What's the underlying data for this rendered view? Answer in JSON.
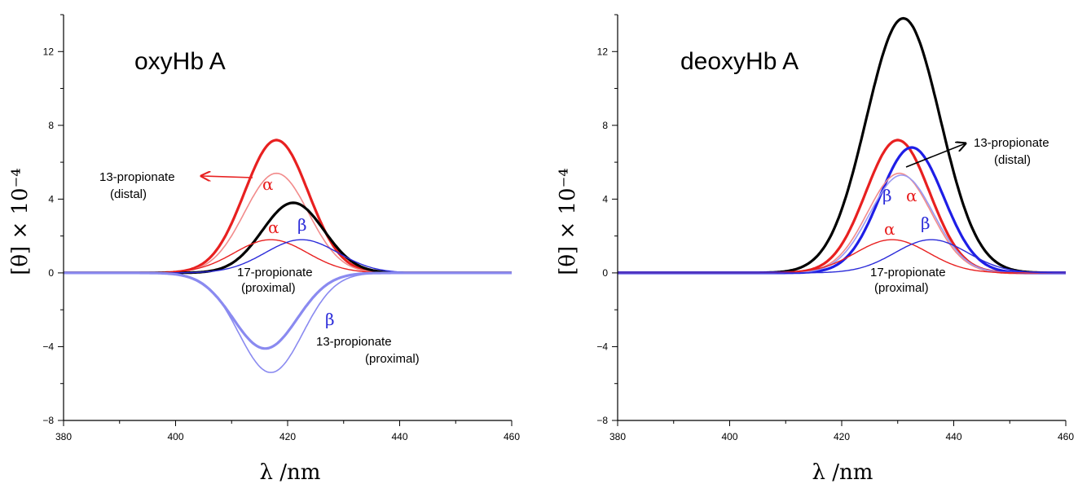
{
  "chart_data": [
    {
      "type": "line",
      "title": "oxyHb A",
      "xlabel": "λ /nm",
      "ylabel": "[θ] × 10⁻⁴",
      "xlim": [
        380,
        460
      ],
      "ylim": [
        -8,
        14
      ],
      "xticks": [
        "380",
        "400",
        "420",
        "440",
        "460"
      ],
      "yticks": [
        "−8",
        "−4",
        "0",
        "4",
        "8",
        "12"
      ],
      "series": [
        {
          "color": "#e82020",
          "width": 3.2,
          "center": 418,
          "amplitude": 7.2,
          "sigma": 5.7
        },
        {
          "color": "#f28b8b",
          "width": 1.6,
          "center": 418,
          "amplitude": 5.4,
          "sigma": 5.7
        },
        {
          "color": "#000000",
          "width": 3.2,
          "center": 421,
          "amplitude": 3.8,
          "sigma": 5.5
        },
        {
          "color": "#e82020",
          "width": 1.4,
          "center": 417,
          "amplitude": 1.8,
          "sigma": 6.5
        },
        {
          "color": "#2b2bd9",
          "width": 1.4,
          "center": 422.5,
          "amplitude": 1.8,
          "sigma": 6.5
        },
        {
          "color": "#8a8af0",
          "width": 3.2,
          "center": 416,
          "amplitude": -4.1,
          "sigma": 5.7
        },
        {
          "color": "#8a8af0",
          "width": 1.6,
          "center": 417,
          "amplitude": -5.4,
          "sigma": 5.7
        }
      ],
      "annotations": {
        "distal_label_1": "13-propionate",
        "distal_label_2": "(distal)",
        "alpha_top": "α",
        "alpha_mid": "α",
        "beta_mid": "β",
        "proximal17_1": "17-propionate",
        "proximal17_2": "(proximal)",
        "beta_low": "β",
        "proximal13_1": "13-propionate",
        "proximal13_2": "(proximal)"
      }
    },
    {
      "type": "line",
      "title": "deoxyHb A",
      "xlabel": "λ /nm",
      "ylabel": "[θ] × 10⁻⁴",
      "xlim": [
        380,
        460
      ],
      "ylim": [
        -8,
        14
      ],
      "xticks": [
        "380",
        "400",
        "420",
        "440",
        "460"
      ],
      "yticks": [
        "−8",
        "−4",
        "0",
        "4",
        "8",
        "12"
      ],
      "series": [
        {
          "color": "#000000",
          "width": 3.2,
          "center": 431,
          "amplitude": 13.8,
          "sigma": 6.6
        },
        {
          "color": "#e82020",
          "width": 3.2,
          "center": 430,
          "amplitude": 7.2,
          "sigma": 5.7
        },
        {
          "color": "#1e1ee6",
          "width": 3.2,
          "center": 432.5,
          "amplitude": 6.8,
          "sigma": 5.7
        },
        {
          "color": "#f28b8b",
          "width": 1.6,
          "center": 430.3,
          "amplitude": 5.4,
          "sigma": 5.7
        },
        {
          "color": "#9a9af2",
          "width": 1.6,
          "center": 430.7,
          "amplitude": 5.3,
          "sigma": 5.7
        },
        {
          "color": "#e82020",
          "width": 1.4,
          "center": 429,
          "amplitude": 1.8,
          "sigma": 6.5
        },
        {
          "color": "#2b2bd9",
          "width": 1.4,
          "center": 436,
          "amplitude": 1.8,
          "sigma": 6.5
        }
      ],
      "annotations": {
        "distal_label_1": "13-propionate",
        "distal_label_2": "(distal)",
        "beta_top": "β",
        "alpha_top": "α",
        "alpha_mid": "α",
        "beta_mid": "β",
        "proximal17_1": "17-propionate",
        "proximal17_2": "(proximal)"
      }
    }
  ]
}
